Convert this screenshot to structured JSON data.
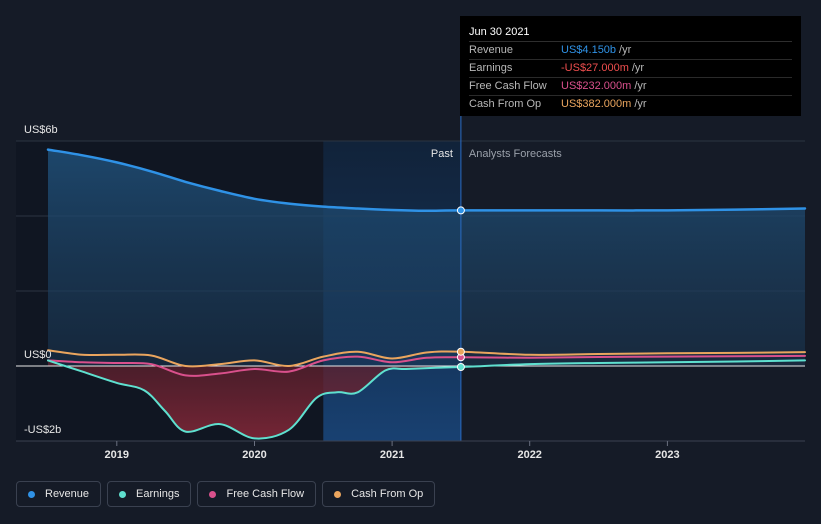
{
  "tooltip": {
    "date": "Jun 30 2021",
    "rows": [
      {
        "label": "Revenue",
        "value": "US$4.150b",
        "unit": "/yr",
        "color": "#2f92e6"
      },
      {
        "label": "Earnings",
        "value": "-US$27.000m",
        "unit": "/yr",
        "color": "#ef4e4e"
      },
      {
        "label": "Free Cash Flow",
        "value": "US$232.000m",
        "unit": "/yr",
        "color": "#d9508c"
      },
      {
        "label": "Cash From Op",
        "value": "US$382.000m",
        "unit": "/yr",
        "color": "#eaa55e"
      }
    ]
  },
  "legend": [
    {
      "label": "Revenue",
      "color": "#2f92e6"
    },
    {
      "label": "Earnings",
      "color": "#5fe0cf"
    },
    {
      "label": "Free Cash Flow",
      "color": "#d9508c"
    },
    {
      "label": "Cash From Op",
      "color": "#eaa55e"
    }
  ],
  "chart_data": {
    "type": "line",
    "y_tick_labels": [
      "US$6b",
      "US$0",
      "-US$2b"
    ],
    "ylim": [
      -2,
      6
    ],
    "xlim": [
      2018.5,
      2024.0
    ],
    "x_ticks": [
      2019,
      2020,
      2021,
      2022,
      2023
    ],
    "x_tick_labels": [
      "2019",
      "2020",
      "2021",
      "2022",
      "2023"
    ],
    "past_label": "Past",
    "forecast_label": "Analysts Forecasts",
    "divider_x": 2021.5,
    "highlight_start": 2020.5,
    "grid": true,
    "series": [
      {
        "name": "Revenue",
        "color": "#2f92e6",
        "x": [
          2018.5,
          2018.75,
          2019.0,
          2019.25,
          2019.5,
          2019.75,
          2020.0,
          2020.25,
          2020.5,
          2020.75,
          2021.0,
          2021.25,
          2021.5,
          2022.0,
          2022.5,
          2023.0,
          2023.5,
          2024.0
        ],
        "y": [
          5.77,
          5.62,
          5.43,
          5.19,
          4.91,
          4.67,
          4.46,
          4.33,
          4.25,
          4.2,
          4.16,
          4.14,
          4.15,
          4.15,
          4.15,
          4.15,
          4.17,
          4.2
        ]
      },
      {
        "name": "Earnings",
        "color": "#5fe0cf",
        "x": [
          2018.5,
          2018.75,
          2019.0,
          2019.2,
          2019.35,
          2019.5,
          2019.75,
          2020.0,
          2020.25,
          2020.45,
          2020.6,
          2020.75,
          2020.95,
          2021.1,
          2021.3,
          2021.5,
          2022.0,
          2022.5,
          2023.0,
          2023.5,
          2024.0
        ],
        "y": [
          0.15,
          -0.15,
          -0.45,
          -0.65,
          -1.2,
          -1.75,
          -1.55,
          -1.93,
          -1.7,
          -0.85,
          -0.7,
          -0.7,
          -0.12,
          -0.08,
          -0.05,
          -0.027,
          0.05,
          0.08,
          0.1,
          0.12,
          0.15
        ]
      },
      {
        "name": "Free Cash Flow",
        "color": "#d9508c",
        "x": [
          2018.5,
          2018.75,
          2019.0,
          2019.25,
          2019.5,
          2019.75,
          2020.0,
          2020.25,
          2020.5,
          2020.75,
          2021.0,
          2021.25,
          2021.5,
          2022.0,
          2022.5,
          2023.0,
          2023.5,
          2024.0
        ],
        "y": [
          0.15,
          0.1,
          0.08,
          0.05,
          -0.25,
          -0.2,
          -0.08,
          -0.15,
          0.15,
          0.25,
          0.1,
          0.22,
          0.232,
          0.22,
          0.24,
          0.25,
          0.26,
          0.27
        ]
      },
      {
        "name": "Cash From Op",
        "color": "#eaa55e",
        "x": [
          2018.5,
          2018.75,
          2019.0,
          2019.25,
          2019.5,
          2019.75,
          2020.0,
          2020.25,
          2020.5,
          2020.75,
          2021.0,
          2021.25,
          2021.5,
          2022.0,
          2022.5,
          2023.0,
          2023.5,
          2024.0
        ],
        "y": [
          0.42,
          0.3,
          0.3,
          0.28,
          0.0,
          0.05,
          0.15,
          0.0,
          0.25,
          0.38,
          0.2,
          0.36,
          0.382,
          0.3,
          0.32,
          0.34,
          0.35,
          0.37
        ]
      }
    ]
  }
}
